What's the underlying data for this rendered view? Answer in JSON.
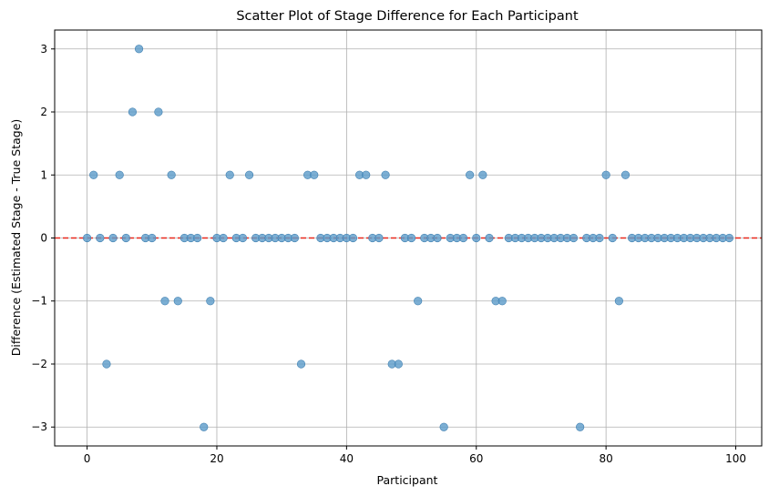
{
  "chart_data": {
    "type": "scatter",
    "title": "Scatter Plot of Stage Difference for Each Participant",
    "xlabel": "Participant",
    "ylabel": "Difference (Estimated Stage - True Stage)",
    "xlim": [
      -5,
      104
    ],
    "ylim": [
      -3.3,
      3.3
    ],
    "xticks": [
      0,
      20,
      40,
      60,
      80,
      100
    ],
    "yticks": [
      -3,
      -2,
      -1,
      0,
      1,
      2,
      3
    ],
    "grid": true,
    "reference_line": {
      "y": 0,
      "style": "dashed",
      "color": "#e8291c"
    },
    "point_color": "#5b9bc9",
    "x": [
      0,
      1,
      2,
      3,
      4,
      5,
      6,
      7,
      8,
      9,
      10,
      11,
      12,
      13,
      14,
      15,
      16,
      17,
      18,
      19,
      20,
      21,
      22,
      23,
      24,
      25,
      26,
      27,
      28,
      29,
      30,
      31,
      32,
      33,
      34,
      35,
      36,
      37,
      38,
      39,
      40,
      41,
      42,
      43,
      44,
      45,
      46,
      47,
      48,
      49,
      50,
      51,
      52,
      53,
      54,
      55,
      56,
      57,
      58,
      59,
      60,
      61,
      62,
      63,
      64,
      65,
      66,
      67,
      68,
      69,
      70,
      71,
      72,
      73,
      74,
      75,
      76,
      77,
      78,
      79,
      80,
      81,
      82,
      83,
      84,
      85,
      86,
      87,
      88,
      89,
      90,
      91,
      92,
      93,
      94,
      95,
      96,
      97,
      98,
      99
    ],
    "y": [
      0,
      1,
      0,
      -2,
      0,
      1,
      0,
      2,
      3,
      0,
      0,
      2,
      -1,
      1,
      -1,
      0,
      0,
      0,
      -3,
      -1,
      0,
      0,
      1,
      0,
      0,
      1,
      0,
      0,
      0,
      0,
      0,
      0,
      0,
      -2,
      1,
      1,
      0,
      0,
      0,
      0,
      0,
      0,
      1,
      1,
      0,
      0,
      1,
      -2,
      -2,
      0,
      0,
      -1,
      0,
      0,
      0,
      -3,
      0,
      0,
      0,
      1,
      0,
      1,
      0,
      -1,
      -1,
      0,
      0,
      0,
      0,
      0,
      0,
      0,
      0,
      0,
      0,
      0,
      -3,
      0,
      0,
      0,
      1,
      0,
      -1,
      1,
      0,
      0,
      0,
      0,
      0,
      0,
      0,
      0,
      0,
      0,
      0,
      0,
      0,
      0,
      0,
      0
    ]
  }
}
